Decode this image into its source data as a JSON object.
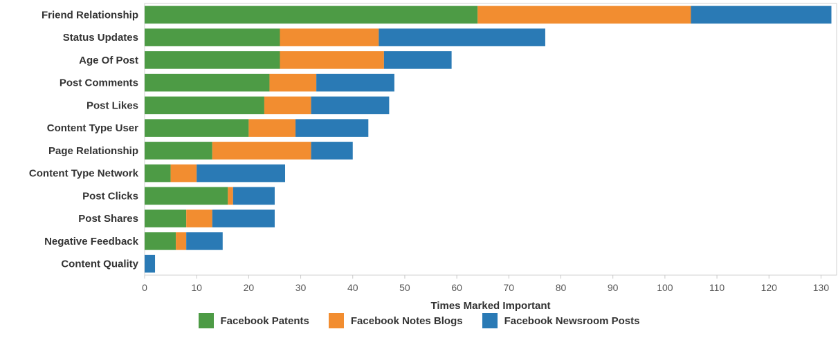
{
  "chart_data": {
    "type": "bar",
    "orientation": "horizontal",
    "stacked": true,
    "categories": [
      "Friend Relationship",
      "Status Updates",
      "Age Of Post",
      "Post Comments",
      "Post Likes",
      "Content Type User",
      "Page Relationship",
      "Content Type Network",
      "Post Clicks",
      "Post Shares",
      "Negative Feedback",
      "Content Quality"
    ],
    "series": [
      {
        "name": "Facebook Patents",
        "color": "#4d9b45",
        "values": [
          64,
          26,
          26,
          24,
          23,
          20,
          13,
          5,
          16,
          8,
          6,
          0
        ]
      },
      {
        "name": "Facebook Notes Blogs",
        "color": "#f28d30",
        "values": [
          41,
          19,
          20,
          9,
          9,
          9,
          19,
          5,
          1,
          5,
          2,
          0
        ]
      },
      {
        "name": "Facebook Newsroom Posts",
        "color": "#2a7ab5",
        "values": [
          27,
          32,
          13,
          15,
          15,
          14,
          8,
          17,
          8,
          12,
          7,
          2
        ]
      }
    ],
    "xlabel": "Times Marked Important",
    "ylabel": "",
    "xlim": [
      0,
      133
    ],
    "xticks": [
      0,
      10,
      20,
      30,
      40,
      50,
      60,
      70,
      80,
      90,
      100,
      110,
      120,
      130
    ],
    "grid": false,
    "legend_position": "bottom"
  }
}
